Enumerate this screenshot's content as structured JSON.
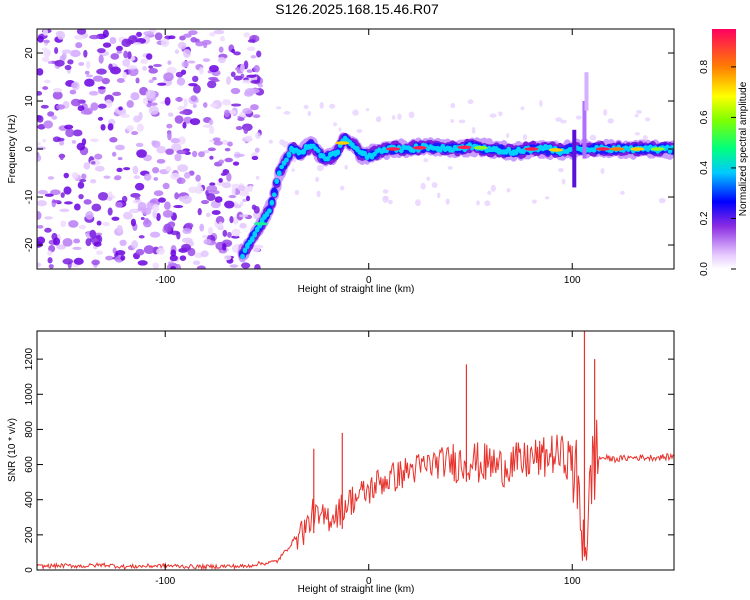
{
  "title": "S126.2025.168.15.46.R07",
  "chart_data": [
    {
      "type": "heatmap",
      "xlabel": "Height of straight line (km)",
      "ylabel": "Frequency (Hz)",
      "xlim": [
        -163,
        150
      ],
      "ylim": [
        -25,
        25
      ],
      "xticks": [
        -100,
        0,
        100
      ],
      "yticks": [
        -20,
        -10,
        0,
        10,
        20
      ],
      "colorbar": {
        "label": "Normalized spectral amplitude",
        "range": [
          0,
          0.95
        ],
        "ticks": [
          "0.0",
          "0.2",
          "0.4",
          "0.6",
          "0.8"
        ]
      },
      "ridge": [
        [
          -62,
          -22
        ],
        [
          -55,
          -17
        ],
        [
          -48,
          -12
        ],
        [
          -44,
          -5
        ],
        [
          -40,
          -2
        ],
        [
          -38,
          0
        ],
        [
          -34,
          -1
        ],
        [
          -28,
          1
        ],
        [
          -22,
          -2
        ],
        [
          -16,
          -1
        ],
        [
          -12,
          2
        ],
        [
          -8,
          1
        ],
        [
          -4,
          -1
        ],
        [
          0,
          -1.5
        ],
        [
          5,
          -0.5
        ],
        [
          10,
          0
        ],
        [
          20,
          0
        ],
        [
          30,
          0.5
        ],
        [
          40,
          0
        ],
        [
          50,
          0.5
        ],
        [
          60,
          0
        ],
        [
          70,
          -0.5
        ],
        [
          80,
          0
        ],
        [
          90,
          0
        ],
        [
          95,
          -0.5
        ],
        [
          100,
          0
        ],
        [
          105,
          0
        ],
        [
          110,
          0
        ],
        [
          120,
          0
        ],
        [
          130,
          0
        ],
        [
          140,
          0
        ],
        [
          150,
          0
        ]
      ]
    },
    {
      "type": "line",
      "xlabel": "Height of straight line (km)",
      "ylabel": "SNR (10 * v/v)",
      "xlim": [
        -163,
        150
      ],
      "ylim": [
        0,
        1360
      ],
      "xticks": [
        -100,
        0,
        100
      ],
      "yticks": [
        0,
        200,
        400,
        600,
        800,
        1000,
        1200
      ],
      "series": [
        {
          "color": "#e8322c",
          "x": [
            -163,
            -150,
            -140,
            -130,
            -120,
            -110,
            -100,
            -90,
            -80,
            -70,
            -60,
            -55,
            -50,
            -45,
            -40,
            -35,
            -30,
            -27,
            -25,
            -20,
            -15,
            -10,
            -5,
            0,
            5,
            10,
            15,
            20,
            25,
            30,
            35,
            40,
            45,
            50,
            55,
            60,
            65,
            70,
            75,
            80,
            85,
            90,
            95,
            100,
            102,
            104,
            106,
            108,
            110,
            112,
            115,
            120,
            130,
            140,
            150
          ],
          "y": [
            20,
            25,
            22,
            30,
            18,
            22,
            25,
            20,
            18,
            22,
            20,
            35,
            40,
            50,
            120,
            200,
            250,
            330,
            280,
            300,
            330,
            390,
            420,
            450,
            500,
            520,
            540,
            570,
            580,
            600,
            610,
            620,
            610,
            630,
            600,
            610,
            580,
            620,
            600,
            640,
            630,
            660,
            650,
            620,
            500,
            300,
            200,
            250,
            620,
            630,
            640,
            630,
            640,
            640,
            645
          ]
        }
      ],
      "spikes": [
        [
          -27,
          690
        ],
        [
          -13,
          780
        ],
        [
          48,
          1170
        ],
        [
          106,
          1360
        ],
        [
          111,
          1200
        ]
      ]
    }
  ]
}
